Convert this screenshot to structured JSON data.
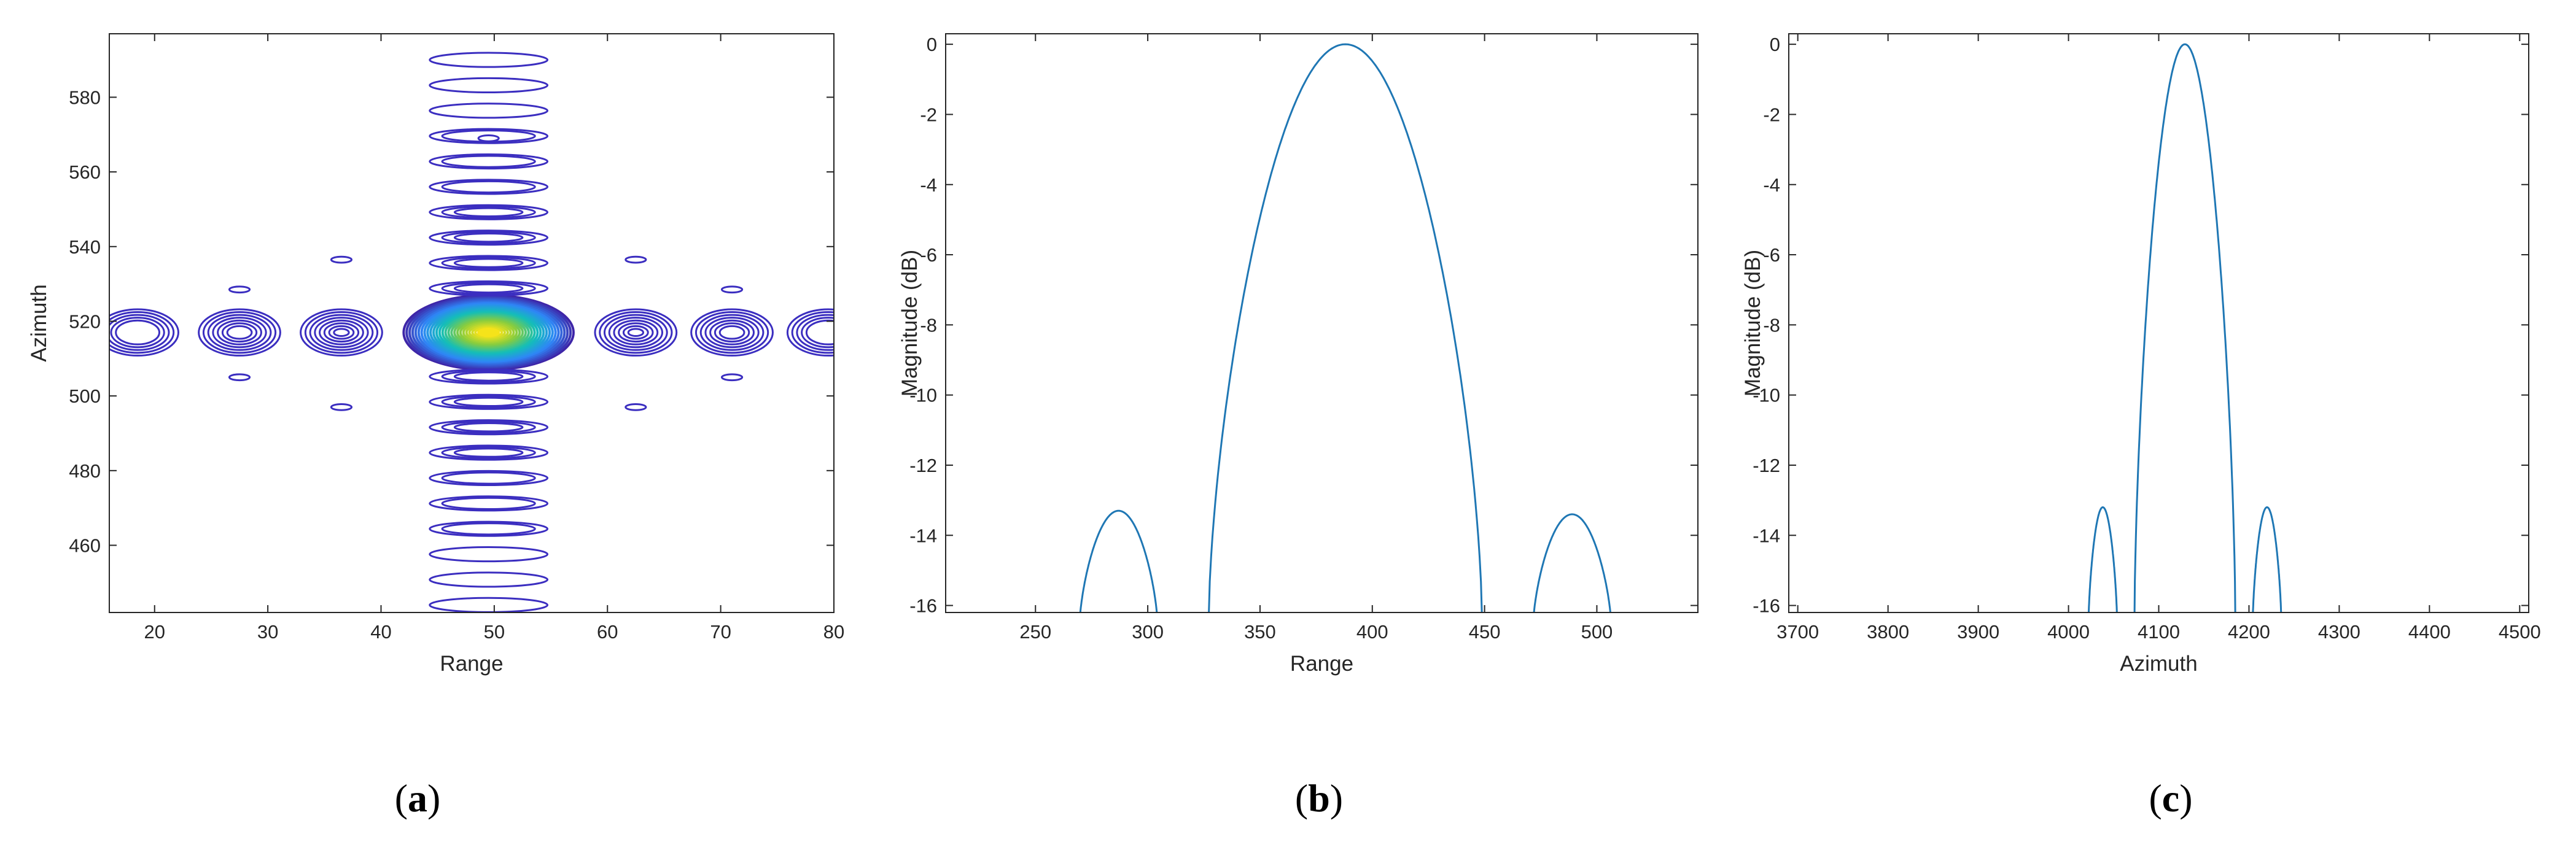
{
  "colors": {
    "curve": "#1f77b4",
    "axes": "#262626",
    "contour_outer": "#3b2ec0",
    "contour_peak": "#f5e31a"
  },
  "chart_data": [
    {
      "panel": "(a)",
      "panel_letter": "a",
      "type": "contour",
      "xlabel": "Range",
      "ylabel": "Azimuth",
      "xlim": [
        16,
        80
      ],
      "ylim": [
        442,
        597
      ],
      "xticks": [
        "20",
        "30",
        "40",
        "50",
        "60",
        "70",
        "80"
      ],
      "yticks": [
        "460",
        "480",
        "500",
        "520",
        "540",
        "560",
        "580"
      ],
      "peak": {
        "x": 49.5,
        "y": 517
      },
      "colormap": "parula",
      "grid": false
    },
    {
      "panel": "(b)",
      "panel_letter": "b",
      "type": "line",
      "xlabel": "Range",
      "ylabel": "Magnitude (dB)",
      "xlim": [
        210,
        545
      ],
      "ylim": [
        -16.2,
        0.3
      ],
      "xticks": [
        "250",
        "300",
        "350",
        "400",
        "450",
        "500"
      ],
      "yticks": [
        "0",
        "-2",
        "-4",
        "-6",
        "-8",
        "-10",
        "-12",
        "-14",
        "-16"
      ],
      "lobes": [
        {
          "center": 287,
          "halfwidth": 17.5,
          "peak": -13.3
        },
        {
          "center": 388,
          "halfwidth": 61,
          "peak": 0
        },
        {
          "center": 489,
          "halfwidth": 17.5,
          "peak": -13.4
        }
      ],
      "grid": false
    },
    {
      "panel": "(c)",
      "panel_letter": "c",
      "type": "line",
      "xlabel": "Azimuth",
      "ylabel": "Magnitude (dB)",
      "xlim": [
        3690,
        4510
      ],
      "ylim": [
        -16.2,
        0.3
      ],
      "xticks": [
        "3700",
        "3800",
        "3900",
        "4000",
        "4100",
        "4200",
        "4300",
        "4400",
        "4500"
      ],
      "yticks": [
        "0",
        "-2",
        "-4",
        "-6",
        "-8",
        "-10",
        "-12",
        "-14",
        "-16"
      ],
      "lobes": [
        {
          "center": 4038,
          "halfwidth": 16,
          "peak": -13.2
        },
        {
          "center": 4129,
          "halfwidth": 56,
          "peak": 0
        },
        {
          "center": 4220,
          "halfwidth": 16,
          "peak": -13.2
        }
      ],
      "grid": false
    }
  ]
}
